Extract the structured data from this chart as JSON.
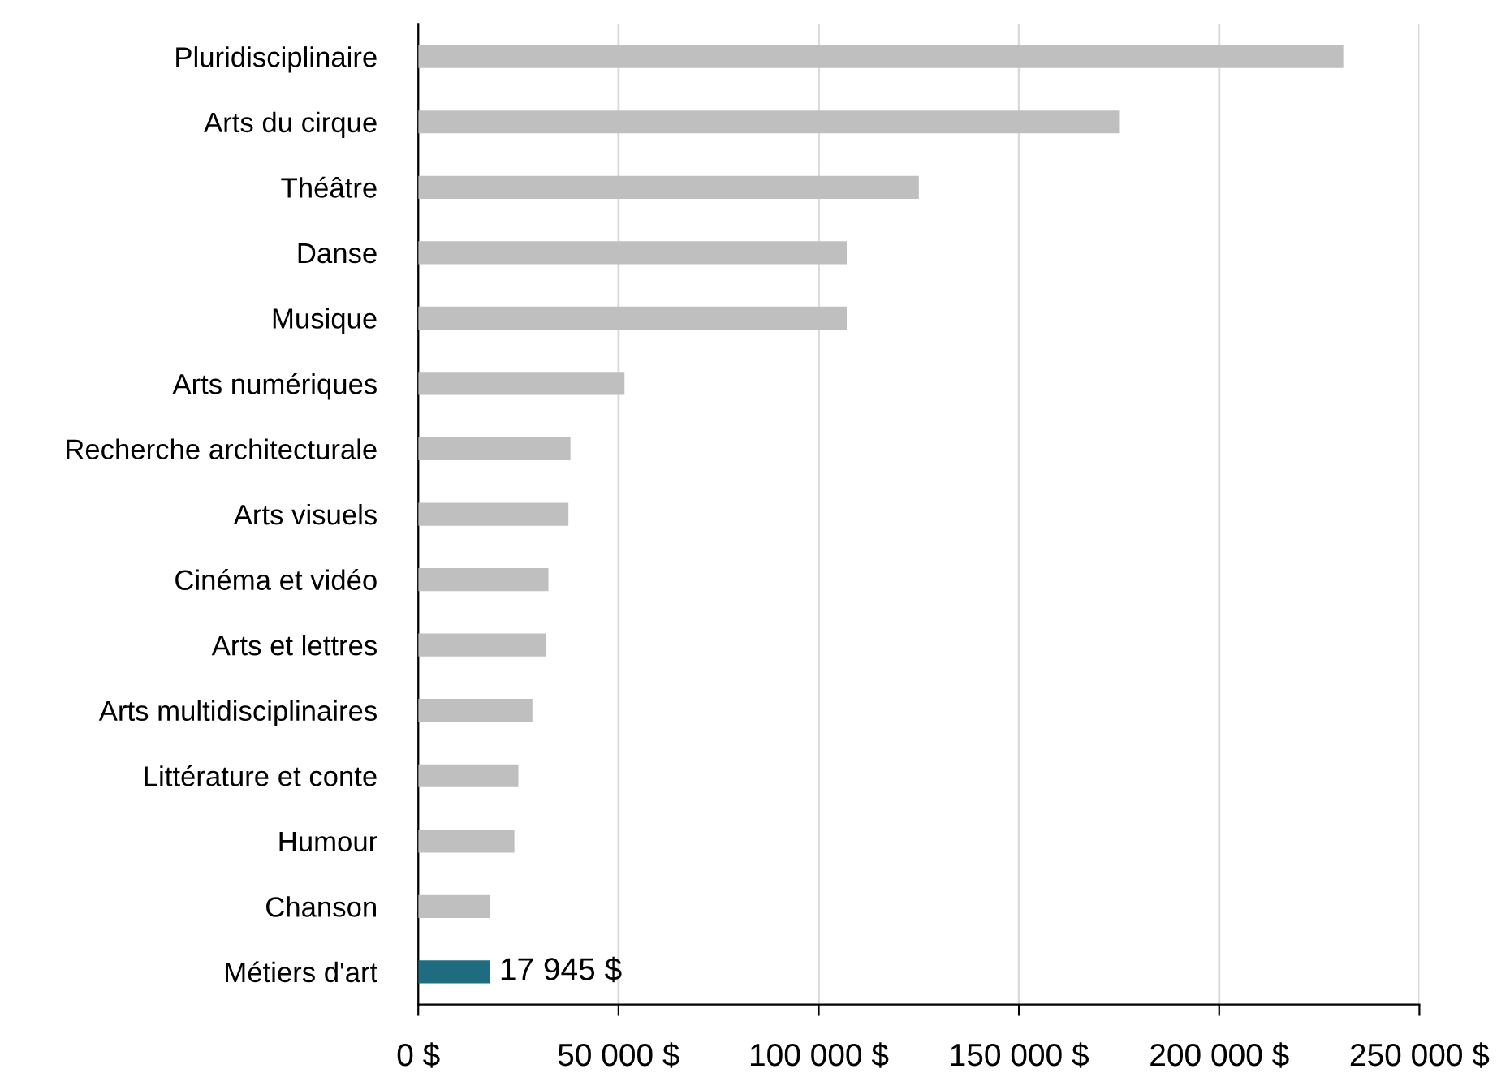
{
  "chart_data": {
    "type": "bar",
    "orientation": "horizontal",
    "categories": [
      "Pluridisciplinaire",
      "Arts du cirque",
      "Théâtre",
      "Danse",
      "Musique",
      "Arts numériques",
      "Recherche architecturale",
      "Arts visuels",
      "Cinéma et vidéo",
      "Arts et lettres",
      "Arts multidisciplinaires",
      "Littérature et conte",
      "Humour",
      "Chanson",
      "Métiers d'art"
    ],
    "values": [
      231000,
      175000,
      125000,
      107000,
      107000,
      51500,
      38000,
      37500,
      32500,
      32000,
      28500,
      25000,
      24000,
      18000,
      17945
    ],
    "colors": [
      "#bfbfbf",
      "#bfbfbf",
      "#bfbfbf",
      "#bfbfbf",
      "#bfbfbf",
      "#bfbfbf",
      "#bfbfbf",
      "#bfbfbf",
      "#bfbfbf",
      "#bfbfbf",
      "#bfbfbf",
      "#bfbfbf",
      "#bfbfbf",
      "#bfbfbf",
      "#1f6b7f"
    ],
    "value_labels": [
      null,
      null,
      null,
      null,
      null,
      null,
      null,
      null,
      null,
      null,
      null,
      null,
      null,
      null,
      "17 945 $"
    ],
    "xlim": [
      0,
      250000
    ],
    "xticks": [
      {
        "value": 0,
        "label": "0 $"
      },
      {
        "value": 50000,
        "label": "50 000 $"
      },
      {
        "value": 100000,
        "label": "100 000 $"
      },
      {
        "value": 150000,
        "label": "150 000 $"
      },
      {
        "value": 200000,
        "label": "200 000 $"
      },
      {
        "value": 250000,
        "label": "250 000 $"
      }
    ],
    "grid": "x",
    "legend": false
  }
}
